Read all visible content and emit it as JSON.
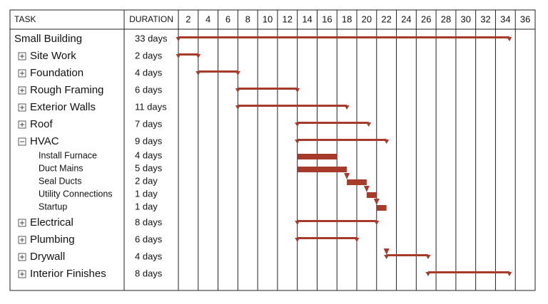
{
  "chart_data": {
    "type": "gantt",
    "headers": [
      "TASK",
      "DURATION"
    ],
    "xlim": [
      0,
      36
    ],
    "xticks": [
      2,
      4,
      6,
      8,
      10,
      12,
      14,
      16,
      18,
      20,
      22,
      24,
      26,
      28,
      30,
      32,
      34,
      36
    ],
    "grid": true,
    "color": "#a63a2b",
    "tasks": [
      {
        "name": "Small Building",
        "duration": "33 days",
        "start": 0,
        "end": 33.4,
        "level": 0,
        "kind": "summary"
      },
      {
        "name": "Site Work",
        "duration": "2 days",
        "start": 0,
        "end": 2,
        "level": 1,
        "kind": "summary",
        "toggle": "plus"
      },
      {
        "name": "Foundation",
        "duration": "4 days",
        "start": 2,
        "end": 6,
        "level": 1,
        "kind": "summary",
        "toggle": "plus"
      },
      {
        "name": "Rough Framing",
        "duration": "6 days",
        "start": 6,
        "end": 12,
        "level": 1,
        "kind": "summary",
        "toggle": "plus"
      },
      {
        "name": "Exterior Walls",
        "duration": "11 days",
        "start": 6,
        "end": 17,
        "level": 1,
        "kind": "summary",
        "toggle": "plus"
      },
      {
        "name": "Roof",
        "duration": "7 days",
        "start": 12,
        "end": 19.2,
        "level": 1,
        "kind": "summary",
        "toggle": "plus"
      },
      {
        "name": "HVAC",
        "duration": "9 days",
        "start": 12,
        "end": 21,
        "level": 1,
        "kind": "summary",
        "toggle": "minus"
      },
      {
        "name": "Install Furnace",
        "duration": "4 days",
        "start": 12,
        "end": 16,
        "level": 2,
        "kind": "task"
      },
      {
        "name": "Duct Mains",
        "duration": "5 days",
        "start": 12,
        "end": 17,
        "level": 2,
        "kind": "task"
      },
      {
        "name": "Seal Ducts",
        "duration": "2 day",
        "start": 17,
        "end": 19,
        "level": 2,
        "kind": "task",
        "linked": true
      },
      {
        "name": "Utility Connections",
        "duration": "1 day",
        "start": 19,
        "end": 20,
        "level": 2,
        "kind": "task",
        "linked": true
      },
      {
        "name": "Startup",
        "duration": "1 day",
        "start": 20,
        "end": 21,
        "level": 2,
        "kind": "task",
        "linked": true
      },
      {
        "name": "Electrical",
        "duration": "8 days",
        "start": 12,
        "end": 20,
        "level": 1,
        "kind": "summary",
        "toggle": "plus"
      },
      {
        "name": "Plumbing",
        "duration": "6 days",
        "start": 12,
        "end": 18,
        "level": 1,
        "kind": "summary",
        "toggle": "plus"
      },
      {
        "name": "Drywall",
        "duration": "4 days",
        "start": 21,
        "end": 25.2,
        "level": 1,
        "kind": "summary",
        "toggle": "plus",
        "linked": true
      },
      {
        "name": "Interior Finishes",
        "duration": "8 days",
        "start": 25.2,
        "end": 33.4,
        "level": 1,
        "kind": "summary",
        "toggle": "plus"
      }
    ]
  }
}
